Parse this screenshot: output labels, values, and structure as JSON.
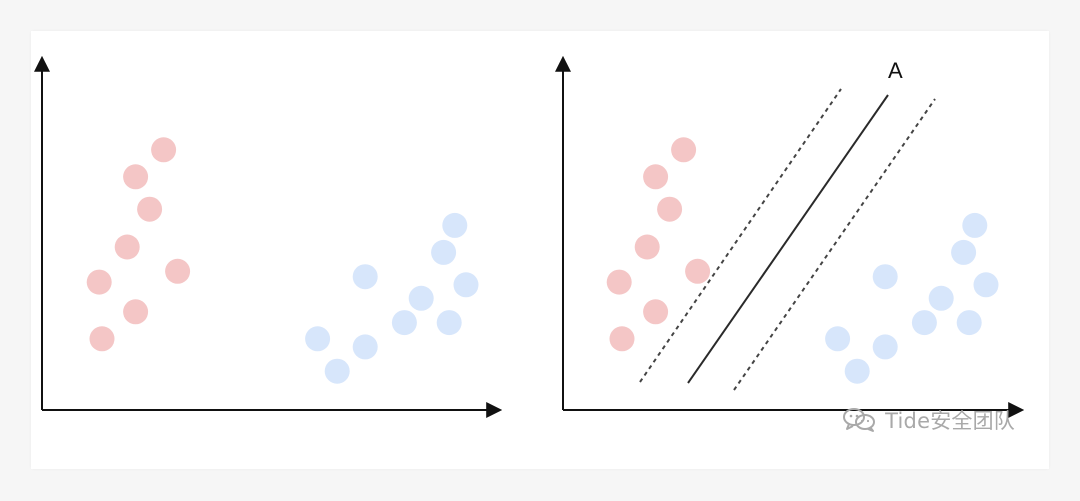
{
  "colors": {
    "class_a": "#f4c6c6",
    "class_b": "#d7e6fb",
    "axis": "#111111",
    "line": "#2a2a2a",
    "watermark": "#a9a9a9"
  },
  "left_plot": {
    "red_points": [
      [
        1.6,
        4.8
      ],
      [
        1.1,
        4.3
      ],
      [
        1.35,
        3.7
      ],
      [
        0.95,
        3.0
      ],
      [
        0.45,
        2.35
      ],
      [
        1.85,
        2.55
      ],
      [
        1.1,
        1.8
      ],
      [
        0.5,
        1.3
      ]
    ],
    "blue_points": [
      [
        6.8,
        3.4
      ],
      [
        6.6,
        2.9
      ],
      [
        5.2,
        2.45
      ],
      [
        7.0,
        2.3
      ],
      [
        6.2,
        2.05
      ],
      [
        5.9,
        1.6
      ],
      [
        6.7,
        1.6
      ],
      [
        4.35,
        1.3
      ],
      [
        5.2,
        1.15
      ],
      [
        4.7,
        0.7
      ]
    ]
  },
  "right_plot": {
    "label": "A",
    "red_points": [
      [
        1.6,
        4.8
      ],
      [
        1.1,
        4.3
      ],
      [
        1.35,
        3.7
      ],
      [
        0.95,
        3.0
      ],
      [
        0.45,
        2.35
      ],
      [
        1.85,
        2.55
      ],
      [
        1.1,
        1.8
      ],
      [
        0.5,
        1.3
      ]
    ],
    "blue_points": [
      [
        6.8,
        3.4
      ],
      [
        6.6,
        2.9
      ],
      [
        5.2,
        2.45
      ],
      [
        7.0,
        2.3
      ],
      [
        6.2,
        2.05
      ],
      [
        5.9,
        1.6
      ],
      [
        6.7,
        1.6
      ],
      [
        4.35,
        1.3
      ],
      [
        5.2,
        1.15
      ],
      [
        4.7,
        0.7
      ]
    ]
  },
  "watermark": {
    "text": "Tide安全团队",
    "icon": "wechat-icon"
  }
}
